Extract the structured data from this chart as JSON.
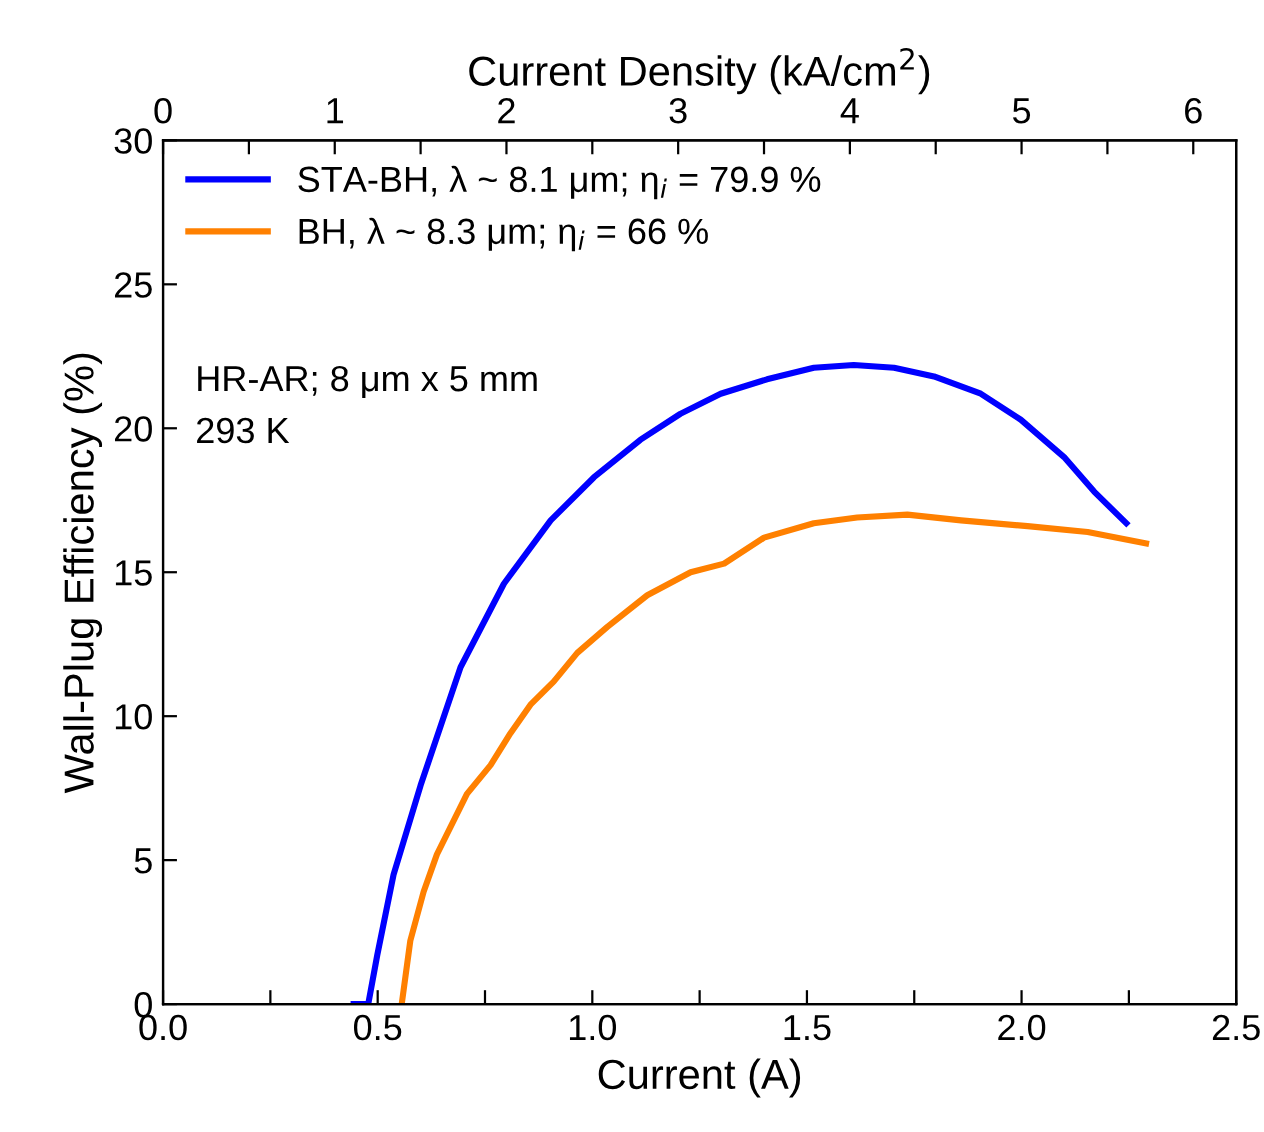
{
  "chart_data": {
    "type": "line",
    "xlabel": "Current (A)",
    "ylabel": "Wall-Plug Efficiency (%)",
    "x2label": "Current Density (kA/cm$^{2}$)",
    "xlim": [
      0,
      2.5
    ],
    "xticks": [
      {
        "value": 0,
        "label": "0.0"
      },
      {
        "value": 0.25,
        "label": null
      },
      {
        "value": 0.5,
        "label": "0.5"
      },
      {
        "value": 0.75,
        "label": null
      },
      {
        "value": 1,
        "label": "1.0"
      },
      {
        "value": 1.25,
        "label": null
      },
      {
        "value": 1.5,
        "label": "1.5"
      },
      {
        "value": 1.75,
        "label": null
      },
      {
        "value": 2,
        "label": "2.0"
      },
      {
        "value": 2.25,
        "label": null
      },
      {
        "value": 2.5,
        "label": "2.5"
      }
    ],
    "x2lim": [
      0,
      6.25
    ],
    "x2ticks": [
      0,
      {
        "value": 0.5,
        "label": null
      },
      1,
      {
        "value": 1.5,
        "label": null
      },
      2,
      {
        "value": 2.5,
        "label": null
      },
      3,
      {
        "value": 3.5,
        "label": null
      },
      4,
      {
        "value": 4.5,
        "label": null
      },
      5,
      {
        "value": 5.5,
        "label": null
      },
      6
    ],
    "ylim": [
      0,
      30
    ],
    "yticks": [
      0,
      5,
      10,
      15,
      20,
      25,
      30
    ],
    "grid": false,
    "legend": "top left",
    "marker": "none",
    "line_style": "solid",
    "annotations": [
      "HR-AR; 8 μm x 5 mm",
      "293 K"
    ],
    "series": [
      {
        "name": "STA-BH, λ ~ 8.1 μm; η$_{i}$ = 79.9 %",
        "color": "#0000ff",
        "x": [
          0.444,
          0.478,
          0.499,
          0.537,
          0.6,
          0.693,
          0.794,
          0.903,
          1.004,
          1.112,
          1.205,
          1.299,
          1.407,
          1.516,
          1.609,
          1.703,
          1.796,
          1.905,
          1.998,
          2.099,
          2.169,
          2.244
        ],
        "values": [
          0,
          0,
          1.7,
          4.5,
          7.6,
          11.7,
          14.6,
          16.8,
          18.3,
          19.6,
          20.5,
          21.2,
          21.7,
          22.1,
          22.2,
          22.1,
          21.8,
          21.2,
          20.3,
          19.0,
          17.8,
          16.7
        ]
      },
      {
        "name": "BH, λ ~ 8.3 μm; η$_{i}$ = 66 %",
        "color": "#ff8000",
        "x": [
          0.556,
          0.576,
          0.607,
          0.638,
          0.708,
          0.763,
          0.809,
          0.856,
          0.91,
          0.965,
          1.035,
          1.128,
          1.229,
          1.307,
          1.4,
          1.516,
          1.617,
          1.734,
          1.859,
          2.014,
          2.154,
          2.29
        ],
        "values": [
          0,
          2.2,
          3.9,
          5.2,
          7.3,
          8.3,
          9.4,
          10.4,
          11.2,
          12.2,
          13.1,
          14.2,
          15.0,
          15.3,
          16.2,
          16.7,
          16.9,
          17.0,
          16.8,
          16.6,
          16.4,
          16.0
        ]
      }
    ]
  }
}
